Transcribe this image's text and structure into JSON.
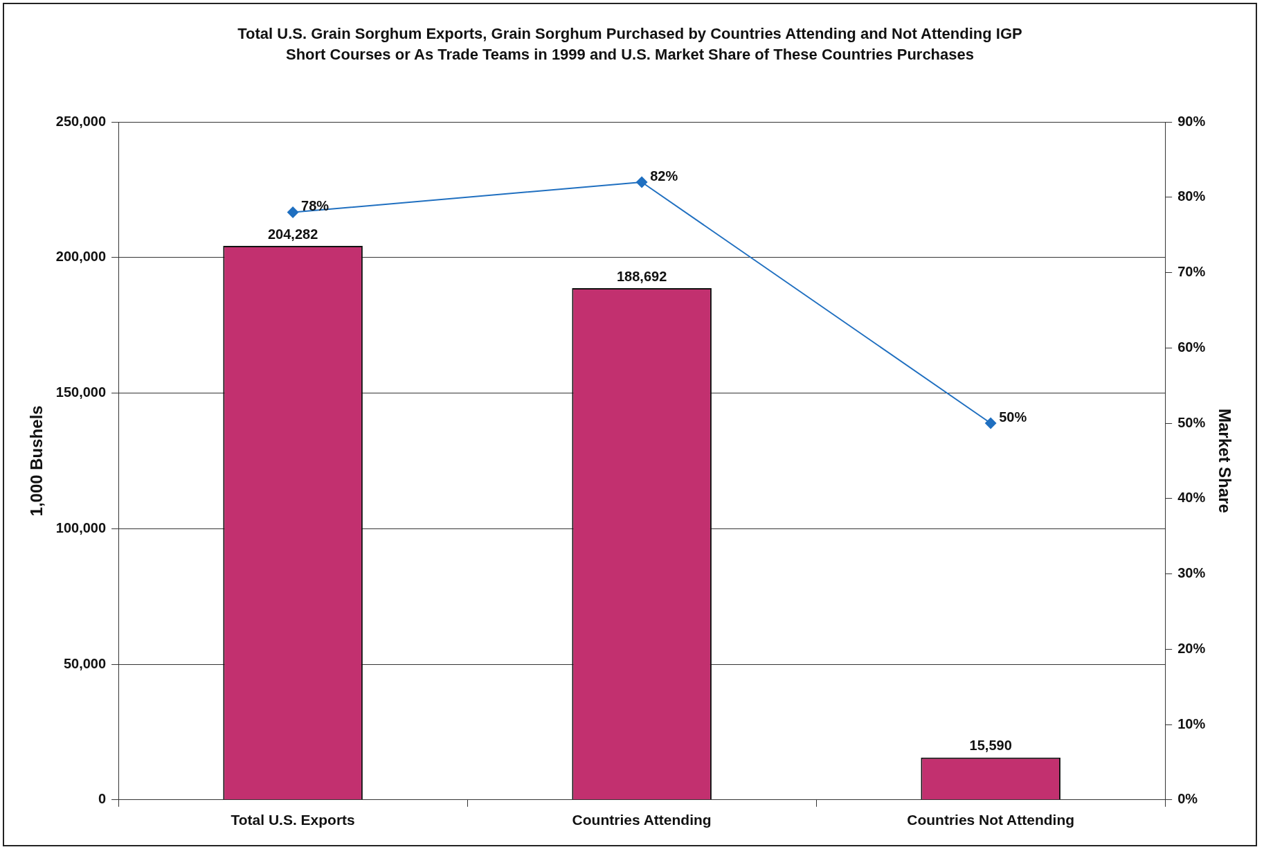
{
  "chart_data": {
    "type": "bar",
    "title": "Total U.S. Grain Sorghum Exports, Grain Sorghum Purchased by Countries Attending and Not Attending IGP Short Courses or As Trade Teams in 1999 and U.S. Market Share of These Countries Purchases",
    "categories": [
      "Total U.S. Exports",
      "Countries Attending",
      "Countries Not Attending"
    ],
    "ylabel": "1,000 Bushels",
    "y2label": "Market Share",
    "series": [
      {
        "color": "#c2306f",
        "values": [
          204282,
          188692,
          15590
        ],
        "value_labels": [
          "204,282",
          "188,692",
          "15,590"
        ]
      },
      {
        "type": "line",
        "axis": "y2",
        "color": "#1f6fc0",
        "marker": "diamond",
        "values": [
          78,
          82,
          50
        ],
        "value_labels": [
          "78%",
          "82%",
          "50%"
        ]
      }
    ],
    "ylim": [
      0,
      250000
    ],
    "yticks": [
      {
        "value": 0,
        "label": "0"
      },
      {
        "value": 50000,
        "label": "50,000"
      },
      {
        "value": 100000,
        "label": "100,000"
      },
      {
        "value": 150000,
        "label": "150,000"
      },
      {
        "value": 200000,
        "label": "200,000"
      },
      {
        "value": 250000,
        "label": "250,000"
      }
    ],
    "y2lim": [
      0,
      90
    ],
    "y2ticks": [
      {
        "value": 0,
        "label": "0%"
      },
      {
        "value": 10,
        "label": "10%"
      },
      {
        "value": 20,
        "label": "20%"
      },
      {
        "value": 30,
        "label": "30%"
      },
      {
        "value": 40,
        "label": "40%"
      },
      {
        "value": 50,
        "label": "50%"
      },
      {
        "value": 60,
        "label": "60%"
      },
      {
        "value": 70,
        "label": "70%"
      },
      {
        "value": 80,
        "label": "80%"
      },
      {
        "value": 90,
        "label": "90%"
      }
    ],
    "grid": "y",
    "legend": false
  }
}
